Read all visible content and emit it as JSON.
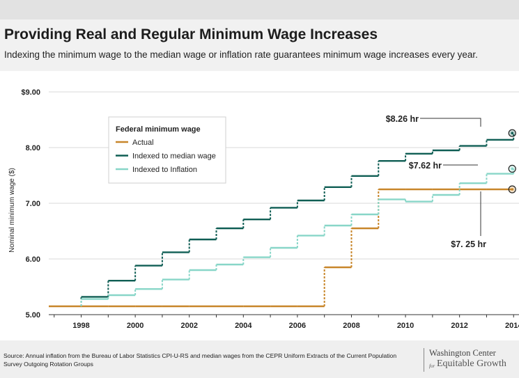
{
  "header": {
    "title": "Providing Real and Regular Minimum Wage Increases",
    "subtitle": "Indexing the minimum wage to the median wage or inflation rate guarantees minimum wage increases every year."
  },
  "footer": {
    "source": "Source: Annual inflation from the Bureau of Labor Statistics CPI-U-RS and median wages from the CEPR Uniform Extracts of the Current Population Survey Outgoing Rotation Groups",
    "logo_line1": "Washington Center",
    "logo_for": "for",
    "logo_line2": "Equitable Growth"
  },
  "chart_data": {
    "type": "line",
    "step": true,
    "ylabel": "Nominal minimum wage ($)",
    "xlim": [
      1996.8,
      2014.2
    ],
    "ylim": [
      5.0,
      9.0
    ],
    "x_ticks": [
      1998,
      2000,
      2002,
      2004,
      2006,
      2008,
      2010,
      2012,
      2014
    ],
    "y_ticks": [
      {
        "value": 5.0,
        "label": "5.00"
      },
      {
        "value": 6.0,
        "label": "6.00"
      },
      {
        "value": 7.0,
        "label": "7.00"
      },
      {
        "value": 8.0,
        "label": "8.00"
      },
      {
        "value": 9.0,
        "label": "$9.00"
      }
    ],
    "grid": "horizontal",
    "legend": {
      "title": "Federal minimum wage",
      "placement": "top-left"
    },
    "series": [
      {
        "name": "Actual",
        "color": "#c8862a",
        "x": [
          1997,
          1998,
          1999,
          2000,
          2001,
          2002,
          2003,
          2004,
          2005,
          2006,
          2007,
          2008,
          2009,
          2010,
          2011,
          2012,
          2013,
          2014
        ],
        "values": [
          5.15,
          5.15,
          5.15,
          5.15,
          5.15,
          5.15,
          5.15,
          5.15,
          5.15,
          5.15,
          5.85,
          6.55,
          7.25,
          7.25,
          7.25,
          7.25,
          7.25,
          7.25
        ]
      },
      {
        "name": "Indexed to median wage",
        "color": "#0f5e54",
        "x": [
          1998,
          1999,
          2000,
          2001,
          2002,
          2003,
          2004,
          2005,
          2006,
          2007,
          2008,
          2009,
          2010,
          2011,
          2012,
          2013,
          2014
        ],
        "values": [
          5.32,
          5.61,
          5.88,
          6.12,
          6.35,
          6.55,
          6.71,
          6.92,
          7.05,
          7.29,
          7.49,
          7.76,
          7.89,
          7.95,
          8.03,
          8.14,
          8.26
        ]
      },
      {
        "name": "Indexed to Inflation",
        "color": "#88d6c8",
        "x": [
          1998,
          1999,
          2000,
          2001,
          2002,
          2003,
          2004,
          2005,
          2006,
          2007,
          2008,
          2009,
          2010,
          2011,
          2012,
          2013,
          2014
        ],
        "values": [
          5.28,
          5.35,
          5.46,
          5.63,
          5.8,
          5.9,
          6.03,
          6.2,
          6.42,
          6.6,
          6.8,
          7.07,
          7.03,
          7.15,
          7.36,
          7.53,
          7.62
        ]
      }
    ],
    "annotations": [
      {
        "text": "$8.26 hr",
        "series": "Indexed to median wage",
        "x": 2014,
        "y": 8.26
      },
      {
        "text": "$7.62 hr",
        "series": "Indexed to Inflation",
        "x": 2014,
        "y": 7.62
      },
      {
        "text": "$7. 25 hr",
        "series": "Actual",
        "x": 2014,
        "y": 7.25
      }
    ]
  }
}
